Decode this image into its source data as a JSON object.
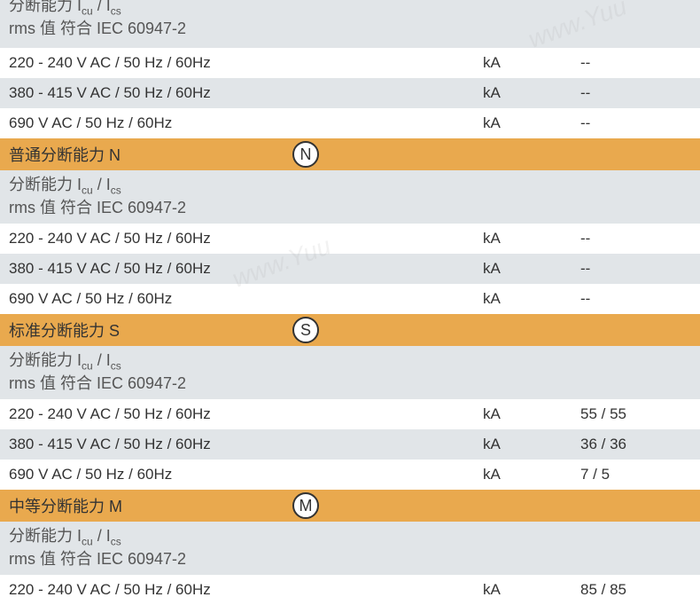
{
  "colors": {
    "bg_white": "#ffffff",
    "bg_gray": "#e1e5e8",
    "bg_orange": "#e9a94e",
    "text_main": "#333333",
    "text_header": "#555555"
  },
  "header_top": {
    "line1_prefix": "分断能力 I",
    "line1_sub1": "cu",
    "line1_mid": " / I",
    "line1_sub2": "cs",
    "line2": "rms 值 符合 IEC 60947-2"
  },
  "sections": [
    {
      "rows": [
        {
          "label": "220 - 240 V AC / 50 Hz / 60Hz",
          "unit": "kA",
          "value": "--",
          "bg": "#ffffff"
        },
        {
          "label": "380 - 415 V AC / 50 Hz / 60Hz",
          "unit": "kA",
          "value": "--",
          "bg": "#e1e5e8"
        },
        {
          "label": "690 V AC / 50 Hz / 60Hz",
          "unit": "kA",
          "value": "--",
          "bg": "#ffffff"
        }
      ]
    },
    {
      "title": "普通分断能力 N",
      "icon": "N",
      "header": true,
      "rows": [
        {
          "label": "220 - 240 V AC / 50 Hz / 60Hz",
          "unit": "kA",
          "value": "--",
          "bg": "#ffffff"
        },
        {
          "label": "380 - 415 V AC / 50 Hz / 60Hz",
          "unit": "kA",
          "value": "--",
          "bg": "#e1e5e8"
        },
        {
          "label": "690 V AC / 50 Hz / 60Hz",
          "unit": "kA",
          "value": "--",
          "bg": "#ffffff"
        }
      ]
    },
    {
      "title": "标准分断能力 S",
      "icon": "S",
      "header": true,
      "rows": [
        {
          "label": "220 - 240 V AC / 50 Hz / 60Hz",
          "unit": "kA",
          "value": "55 / 55",
          "bg": "#ffffff"
        },
        {
          "label": "380 - 415 V AC / 50 Hz / 60Hz",
          "unit": "kA",
          "value": "36 / 36",
          "bg": "#e1e5e8"
        },
        {
          "label": "690 V AC / 50 Hz / 60Hz",
          "unit": "kA",
          "value": "7 / 5",
          "bg": "#ffffff"
        }
      ]
    },
    {
      "title": "中等分断能力 M",
      "icon": "M",
      "header": true,
      "rows": [
        {
          "label": "220 - 240 V AC / 50 Hz / 60Hz",
          "unit": "kA",
          "value": "85 / 85",
          "bg": "#ffffff"
        }
      ]
    }
  ],
  "watermark": "www.Yuu"
}
